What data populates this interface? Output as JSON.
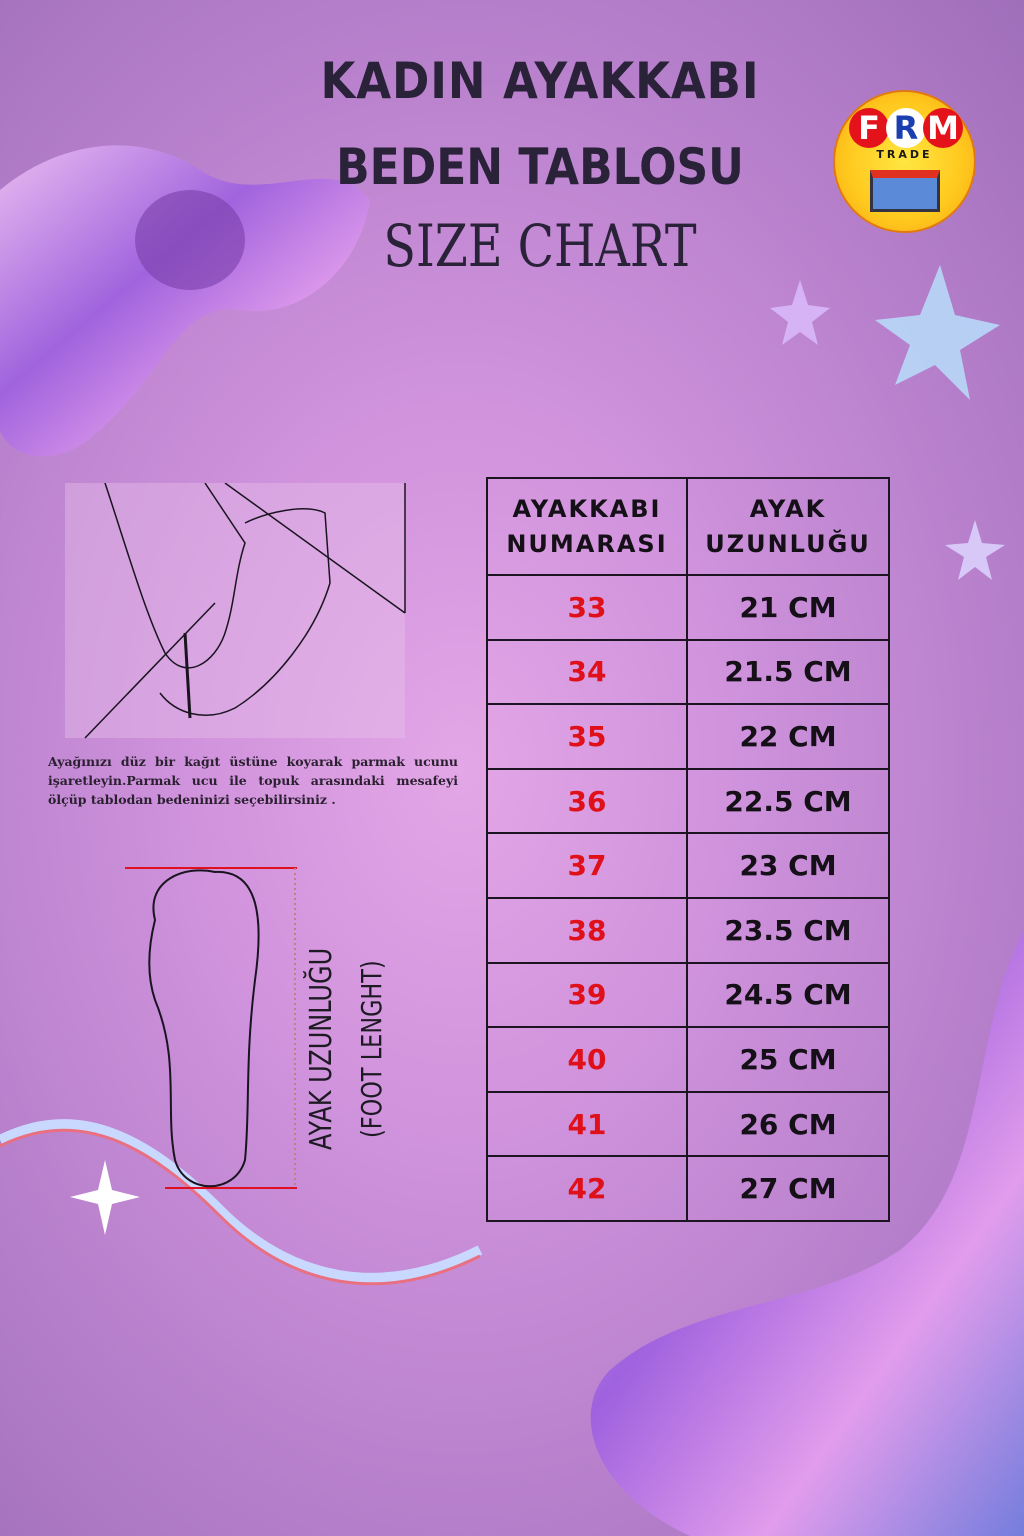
{
  "header": {
    "line1": "KADIN AYAKKABI",
    "line2": "BEDEN TABLOSU",
    "line3": "SIZE CHART"
  },
  "logo": {
    "letters": [
      "F",
      "R",
      "M"
    ],
    "sub": "TRADE"
  },
  "instructions": "Ayağınızı düz bir kağıt üstüne koyarak parmak ucunu işaretleyin.Parmak ucu ile topuk arasındaki mesafeyi ölçüp tablodan bedeninizi seçebilirsiniz .",
  "foot_label": {
    "tr": "AYAK UZUNLUĞU",
    "en": "(FOOT LENGHT)"
  },
  "table": {
    "headers": [
      "AYAKKABI NUMARASI",
      "AYAK UZUNLUĞU"
    ],
    "rows": [
      {
        "size": "33",
        "length": "21 CM"
      },
      {
        "size": "34",
        "length": "21.5 CM"
      },
      {
        "size": "35",
        "length": "22 CM"
      },
      {
        "size": "36",
        "length": "22.5 CM"
      },
      {
        "size": "37",
        "length": "23 CM"
      },
      {
        "size": "38",
        "length": "23.5 CM"
      },
      {
        "size": "39",
        "length": "24.5 CM"
      },
      {
        "size": "40",
        "length": "25 CM"
      },
      {
        "size": "41",
        "length": "26 CM"
      },
      {
        "size": "42",
        "length": "27 CM"
      }
    ]
  },
  "colors": {
    "size_number": "#e0101a",
    "text": "#151018",
    "background": "#cf92dc"
  }
}
